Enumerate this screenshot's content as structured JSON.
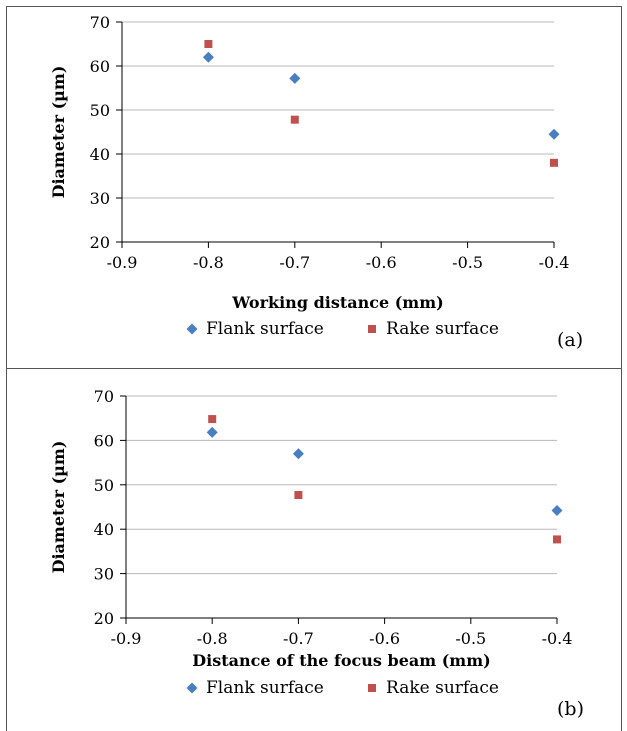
{
  "chart_data": [
    {
      "type": "scatter",
      "panel_label": "(a)",
      "xlabel": "Working distance (mm)",
      "ylabel": "Diameter (µm)",
      "xlim": [
        -0.9,
        -0.4
      ],
      "ylim": [
        20,
        70
      ],
      "x_ticks": [
        "-0.9",
        "-0.8",
        "-0.7",
        "-0.6",
        "-0.5",
        "-0.4"
      ],
      "y_ticks": [
        "20",
        "30",
        "40",
        "50",
        "60",
        "70"
      ],
      "grid": "horizontal",
      "legend_position": "bottom",
      "series": [
        {
          "name": "Flank surface",
          "color": "#4a7ec2",
          "marker": "diamond",
          "points": [
            {
              "x": -0.8,
              "y": 62
            },
            {
              "x": -0.7,
              "y": 57.2
            },
            {
              "x": -0.4,
              "y": 44.5
            }
          ]
        },
        {
          "name": "Rake surface",
          "color": "#c0504d",
          "marker": "square",
          "points": [
            {
              "x": -0.8,
              "y": 65
            },
            {
              "x": -0.7,
              "y": 47.8
            },
            {
              "x": -0.4,
              "y": 38
            }
          ]
        }
      ]
    },
    {
      "type": "scatter",
      "panel_label": "(b)",
      "xlabel": "Distance of the focus beam (mm)",
      "ylabel": "Diameter (µm)",
      "xlim": [
        -0.9,
        -0.4
      ],
      "ylim": [
        20,
        70
      ],
      "x_ticks": [
        "-0.9",
        "-0.8",
        "-0.7",
        "-0.6",
        "-0.5",
        "-0.4"
      ],
      "y_ticks": [
        "20",
        "30",
        "40",
        "50",
        "60",
        "70"
      ],
      "grid": "horizontal",
      "legend_position": "bottom",
      "series": [
        {
          "name": "Flank surface",
          "color": "#4a7ec2",
          "marker": "diamond",
          "points": [
            {
              "x": -0.8,
              "y": 61.8
            },
            {
              "x": -0.7,
              "y": 57
            },
            {
              "x": -0.4,
              "y": 44.2
            }
          ]
        },
        {
          "name": "Rake surface",
          "color": "#c0504d",
          "marker": "square",
          "points": [
            {
              "x": -0.8,
              "y": 64.8
            },
            {
              "x": -0.7,
              "y": 47.7
            },
            {
              "x": -0.4,
              "y": 37.7
            }
          ]
        }
      ]
    }
  ]
}
